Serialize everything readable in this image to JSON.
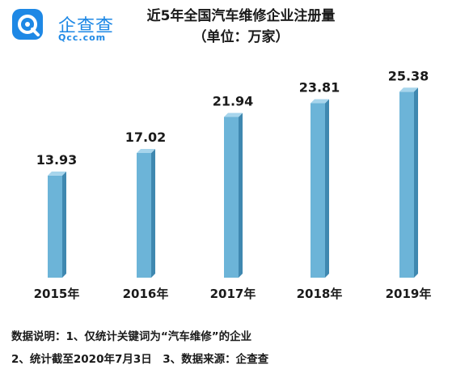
{
  "logo": {
    "name": "企查查",
    "domain": "Qcc.com"
  },
  "chart_data": {
    "type": "bar",
    "title": "近5年全国汽车维修企业注册量",
    "subtitle": "（单位：万家）",
    "categories": [
      "2015年",
      "2016年",
      "2017年",
      "2018年",
      "2019年"
    ],
    "values": [
      13.93,
      17.02,
      21.94,
      23.81,
      25.38
    ],
    "data_labels": [
      "13.93",
      "17.02",
      "21.94",
      "23.81",
      "25.38"
    ],
    "bar_color": "#6cb4d8",
    "bar_side_color": "#3f88b0",
    "bar_top_color": "#a7d5ec",
    "grid": false
  },
  "notes": {
    "line1": "数据说明：1、仅统计关键词为“汽车维修”的企业",
    "line2": "2、统计截至2020年7月3日　3、数据来源：企查查"
  }
}
